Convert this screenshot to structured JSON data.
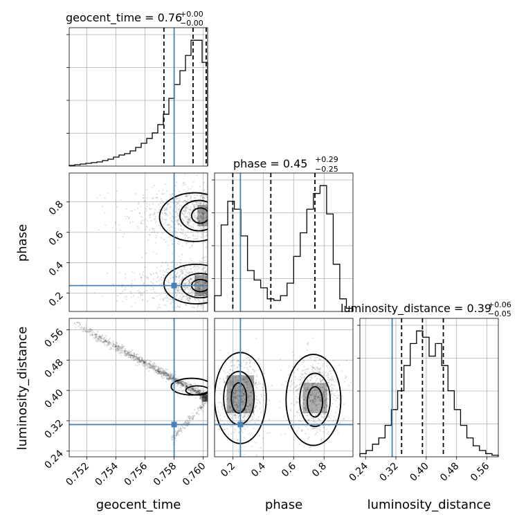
{
  "figure": {
    "titles": {
      "geocent_time": {
        "name": "geocent_time",
        "value": "0.76",
        "plus": "+0.00",
        "minus": "−0.00"
      },
      "phase": {
        "name": "phase",
        "value": "0.45",
        "plus": "+0.29",
        "minus": "−0.25"
      },
      "luminosity_distance": {
        "name": "luminosity_distance",
        "value": "0.39",
        "plus": "+0.06",
        "minus": "−0.05"
      }
    },
    "axis_labels": {
      "geocent_time": "geocent_time",
      "phase": "phase",
      "luminosity_distance": "luminosity_distance"
    },
    "colors": {
      "truth": "#4682b4",
      "hist": "#000000",
      "grid": "#b0b0b0"
    }
  },
  "chart_data": {
    "type": "corner",
    "parameters": [
      "geocent_time",
      "phase",
      "luminosity_distance"
    ],
    "truths": {
      "geocent_time": 0.758,
      "phase": 0.25,
      "luminosity_distance": 0.31
    },
    "ranges": {
      "geocent_time": [
        0.7508,
        0.7603
      ],
      "phase": [
        0.08,
        0.99
      ],
      "luminosity_distance": [
        0.225,
        0.59
      ]
    },
    "ticks": {
      "geocent_time": {
        "values": [
          0.752,
          0.754,
          0.756,
          0.758,
          0.76
        ],
        "labels": [
          "0.752",
          "0.754",
          "0.756",
          "0.758",
          "0.760"
        ]
      },
      "phase": {
        "values": [
          0.2,
          0.4,
          0.6,
          0.8
        ],
        "labels": [
          "0.2",
          "0.4",
          "0.6",
          "0.8"
        ]
      },
      "luminosity_distance": {
        "values": [
          0.24,
          0.32,
          0.4,
          0.48,
          0.56
        ],
        "labels": [
          "0.24",
          "0.32",
          "0.40",
          "0.48",
          "0.56"
        ]
      }
    },
    "histograms": {
      "geocent_time": {
        "quantiles": [
          0.7573,
          0.7593,
          0.7602
        ],
        "counts": [
          1,
          2,
          3,
          4,
          5,
          6,
          8,
          10,
          13,
          16,
          18,
          22,
          27,
          33,
          40,
          48,
          60,
          75,
          98,
          118,
          138,
          160,
          182,
          182,
          150
        ]
      },
      "phase": {
        "quantiles": [
          0.2,
          0.45,
          0.74
        ],
        "counts": [
          10,
          55,
          70,
          65,
          48,
          26,
          20,
          15,
          8,
          7,
          10,
          18,
          35,
          50,
          65,
          75,
          80,
          62,
          30,
          8,
          2
        ]
      },
      "luminosity_distance": {
        "quantiles": [
          0.335,
          0.39,
          0.445
        ],
        "counts": [
          2,
          4,
          8,
          12,
          20,
          30,
          42,
          58,
          72,
          80,
          76,
          64,
          72,
          58,
          42,
          30,
          20,
          12,
          7,
          4,
          2,
          1
        ]
      }
    },
    "scatter_2d": [
      {
        "x": "geocent_time",
        "y": "phase",
        "description": "two bands near phase 0.25 and 0.72 concentrated at geocent_time 0.759-0.7603 with contours"
      },
      {
        "x": "geocent_time",
        "y": "luminosity_distance",
        "description": "narrow curved tail from (0.751, 0.58) decreasing to (0.760, 0.38); branch to (0.758, 0.30)"
      },
      {
        "x": "phase",
        "y": "luminosity_distance",
        "description": "two blobs at phase 0.25 and 0.75, luminosity_distance 0.30-0.45"
      }
    ]
  }
}
